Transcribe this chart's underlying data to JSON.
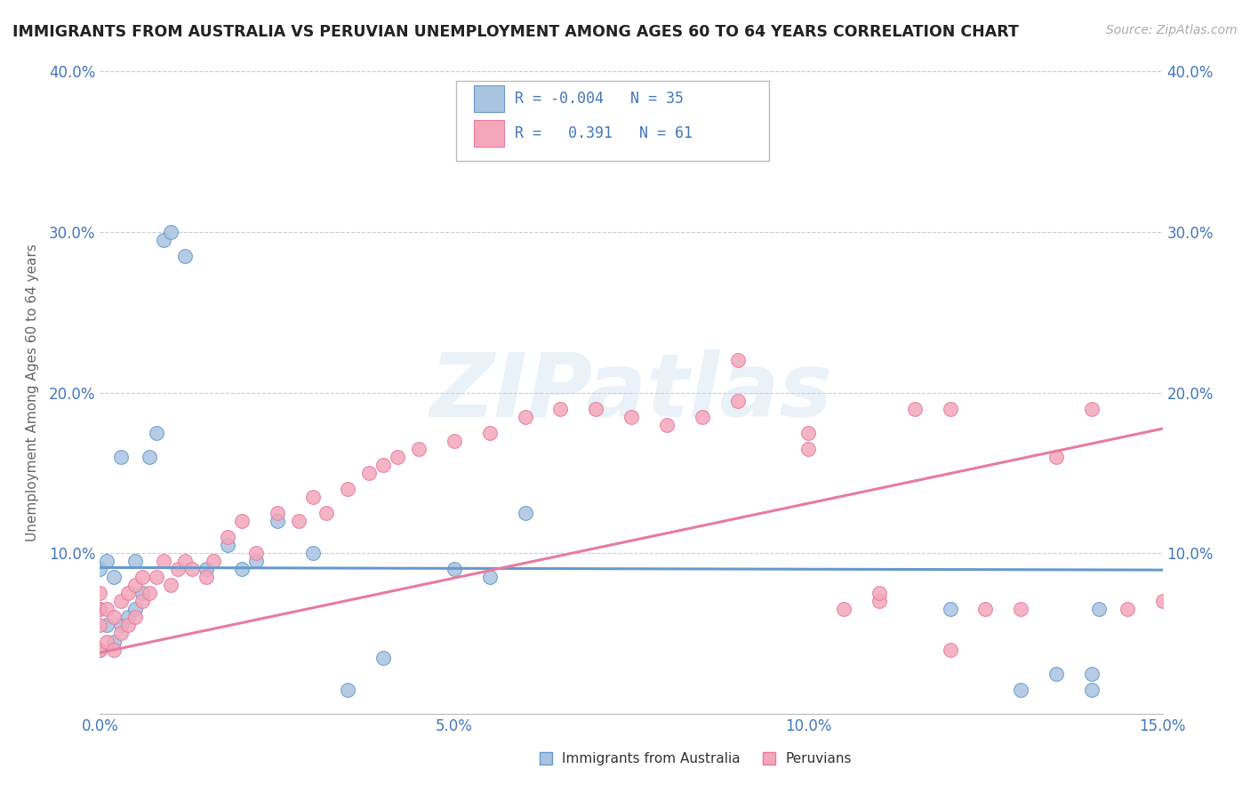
{
  "title": "IMMIGRANTS FROM AUSTRALIA VS PERUVIAN UNEMPLOYMENT AMONG AGES 60 TO 64 YEARS CORRELATION CHART",
  "source": "Source: ZipAtlas.com",
  "ylabel": "Unemployment Among Ages 60 to 64 years",
  "xlim": [
    0.0,
    0.15
  ],
  "ylim": [
    0.0,
    0.4
  ],
  "xticks": [
    0.0,
    0.05,
    0.1,
    0.15
  ],
  "xticklabels": [
    "0.0%",
    "5.0%",
    "10.0%",
    "15.0%"
  ],
  "yticks": [
    0.0,
    0.1,
    0.2,
    0.3,
    0.4
  ],
  "yticklabels": [
    "",
    "10.0%",
    "20.0%",
    "30.0%",
    "40.0%"
  ],
  "legend_R1": "-0.004",
  "legend_N1": "35",
  "legend_R2": "0.391",
  "legend_N2": "61",
  "color_blue": "#a8c4e0",
  "color_pink": "#f4a7b9",
  "color_blue_line": "#6699cc",
  "color_pink_line": "#e87aa0",
  "color_text_blue": "#4477bb",
  "watermark": "ZIPatlas",
  "background": "#ffffff",
  "blue_trend_intercept": 0.091,
  "blue_trend_slope": -0.01,
  "pink_trend_intercept": 0.038,
  "pink_trend_slope": 0.93,
  "blue_points_x": [
    0.0,
    0.0,
    0.0,
    0.001,
    0.001,
    0.002,
    0.002,
    0.003,
    0.003,
    0.004,
    0.005,
    0.005,
    0.006,
    0.007,
    0.008,
    0.009,
    0.01,
    0.012,
    0.015,
    0.018,
    0.02,
    0.022,
    0.025,
    0.03,
    0.035,
    0.04,
    0.05,
    0.055,
    0.06,
    0.12,
    0.13,
    0.135,
    0.14,
    0.14,
    0.141
  ],
  "blue_points_y": [
    0.04,
    0.065,
    0.09,
    0.055,
    0.095,
    0.045,
    0.085,
    0.055,
    0.16,
    0.06,
    0.065,
    0.095,
    0.075,
    0.16,
    0.175,
    0.295,
    0.3,
    0.285,
    0.09,
    0.105,
    0.09,
    0.095,
    0.12,
    0.1,
    0.015,
    0.035,
    0.09,
    0.085,
    0.125,
    0.065,
    0.015,
    0.025,
    0.015,
    0.025,
    0.065
  ],
  "pink_points_x": [
    0.0,
    0.0,
    0.0,
    0.0,
    0.001,
    0.001,
    0.002,
    0.002,
    0.003,
    0.003,
    0.004,
    0.004,
    0.005,
    0.005,
    0.006,
    0.006,
    0.007,
    0.008,
    0.009,
    0.01,
    0.011,
    0.012,
    0.013,
    0.015,
    0.016,
    0.018,
    0.02,
    0.022,
    0.025,
    0.028,
    0.03,
    0.032,
    0.035,
    0.038,
    0.04,
    0.042,
    0.045,
    0.05,
    0.055,
    0.06,
    0.065,
    0.07,
    0.075,
    0.08,
    0.085,
    0.09,
    0.1,
    0.105,
    0.11,
    0.115,
    0.12,
    0.125,
    0.13,
    0.135,
    0.14,
    0.145,
    0.15,
    0.09,
    0.1,
    0.11,
    0.12
  ],
  "pink_points_y": [
    0.04,
    0.055,
    0.065,
    0.075,
    0.045,
    0.065,
    0.04,
    0.06,
    0.05,
    0.07,
    0.055,
    0.075,
    0.06,
    0.08,
    0.07,
    0.085,
    0.075,
    0.085,
    0.095,
    0.08,
    0.09,
    0.095,
    0.09,
    0.085,
    0.095,
    0.11,
    0.12,
    0.1,
    0.125,
    0.12,
    0.135,
    0.125,
    0.14,
    0.15,
    0.155,
    0.16,
    0.165,
    0.17,
    0.175,
    0.185,
    0.19,
    0.19,
    0.185,
    0.18,
    0.185,
    0.195,
    0.175,
    0.065,
    0.07,
    0.19,
    0.04,
    0.065,
    0.065,
    0.16,
    0.19,
    0.065,
    0.07,
    0.22,
    0.165,
    0.075,
    0.19
  ]
}
